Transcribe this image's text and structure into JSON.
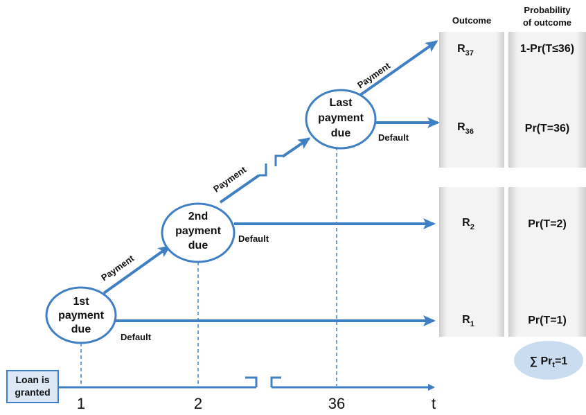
{
  "colors": {
    "arrow": "#3f7fc4",
    "node_stroke": "#3f7fc4",
    "panel_shade": "#d8d8d8",
    "sum_bubble": "#c9dcf0"
  },
  "start_box": {
    "line1": "Loan is",
    "line2": "granted"
  },
  "nodes": [
    {
      "line1": "1st",
      "line2": "payment",
      "line3": "due"
    },
    {
      "line1": "2nd",
      "line2": "payment",
      "line3": "due"
    },
    {
      "line1": "Last",
      "line2": "payment",
      "line3": "due"
    }
  ],
  "edge_labels": {
    "payment": "Payment",
    "default": "Default"
  },
  "axis": {
    "ticks": [
      "1",
      "2",
      "36"
    ],
    "t_label": "t"
  },
  "table": {
    "headers": {
      "outcome": "Outcome",
      "prob_line1": "Probability",
      "prob_line2": "of outcome"
    },
    "rows": [
      {
        "outcome_base": "R",
        "outcome_sub": "37",
        "prob": "1-Pr(T≤36)"
      },
      {
        "outcome_base": "R",
        "outcome_sub": "36",
        "prob": "Pr(T=36)"
      },
      {
        "outcome_base": "R",
        "outcome_sub": "2",
        "prob": "Pr(T=2)"
      },
      {
        "outcome_base": "R",
        "outcome_sub": "1",
        "prob": "Pr(T=1)"
      }
    ]
  },
  "sum": {
    "prefix": "∑ Pr",
    "sub": "t",
    "suffix": "=1"
  }
}
